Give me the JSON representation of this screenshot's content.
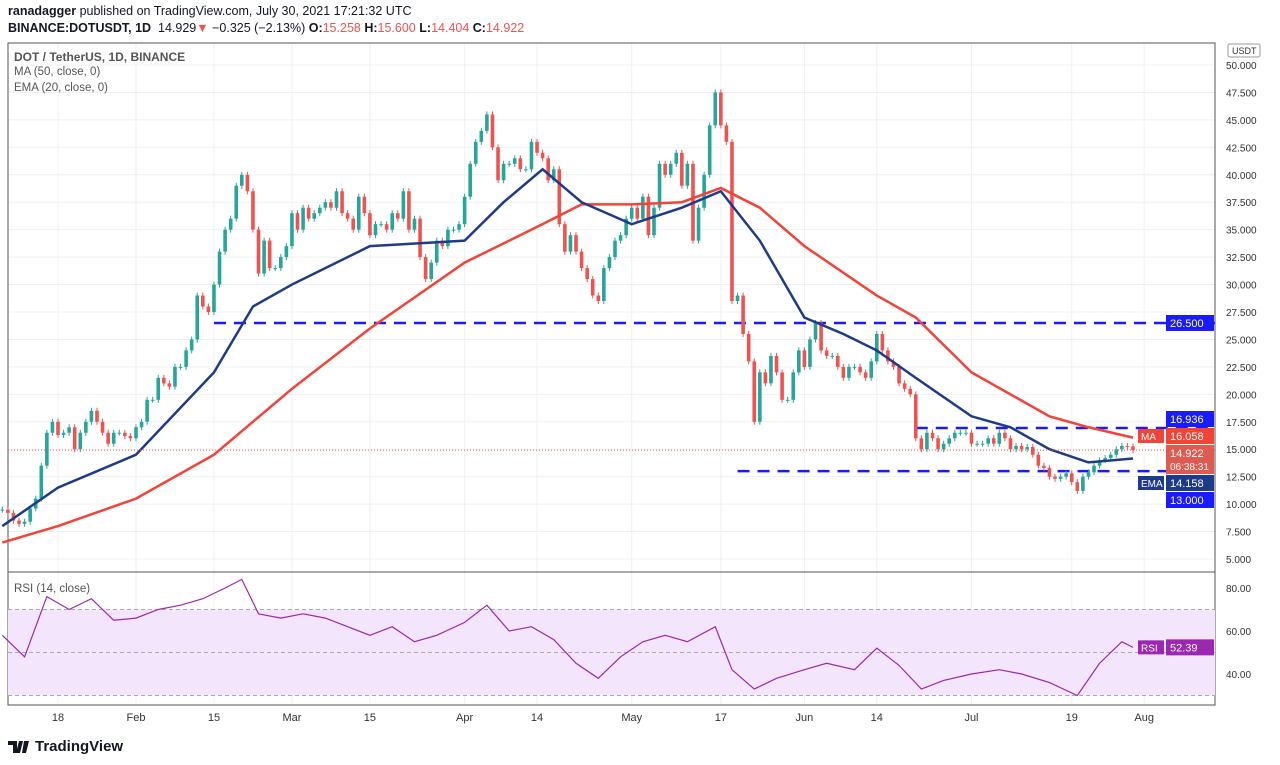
{
  "header": {
    "publisher": "ranadagger",
    "published_text": "published on TradingView.com, July 30, 2021 17:21:32 UTC",
    "symbol": "BINANCE:DOTUSDT, 1D",
    "last": "14.929",
    "change": "−0.325 (−2.13%)",
    "o_label": "O:",
    "o": "15.258",
    "h_label": "H:",
    "h": "15.600",
    "l_label": "L:",
    "l": "14.404",
    "c_label": "C:",
    "c": "14.922",
    "direction_icon": "triangle-down-icon"
  },
  "legend": {
    "title": "DOT / TetherUS, 1D, BINANCE",
    "ma": "MA (50, close, 0)",
    "ema": "EMA (20, close, 0)",
    "rsi": "RSI (14, close)"
  },
  "brand": "TradingView",
  "colors": {
    "up": "#26a69a",
    "down": "#ef5350",
    "ma": "#f44336",
    "ema": "#1e3a8a",
    "levels": "#1a1aff",
    "rsi": "#9c27b0",
    "rsi_band": "#f3e5fc"
  },
  "chart_data": {
    "type": "candlestick",
    "start_date": "2021-01-08",
    "currency": "USDT",
    "ylim": [
      5,
      50
    ],
    "price_ticks": [
      "5.000",
      "7.500",
      "10.000",
      "12.500",
      "15.000",
      "17.500",
      "20.000",
      "22.500",
      "25.000",
      "27.500",
      "30.000",
      "32.500",
      "35.000",
      "37.500",
      "40.000",
      "42.500",
      "45.000",
      "47.500",
      "50.000"
    ],
    "x_ticks": [
      {
        "date": "2021-01-18",
        "label": "18"
      },
      {
        "date": "2021-02-01",
        "label": "Feb"
      },
      {
        "date": "2021-02-15",
        "label": "15"
      },
      {
        "date": "2021-03-01",
        "label": "Mar"
      },
      {
        "date": "2021-03-15",
        "label": "15"
      },
      {
        "date": "2021-04-01",
        "label": "Apr"
      },
      {
        "date": "2021-04-14",
        "label": "14"
      },
      {
        "date": "2021-05-01",
        "label": "May"
      },
      {
        "date": "2021-05-17",
        "label": "17"
      },
      {
        "date": "2021-06-01",
        "label": "Jun"
      },
      {
        "date": "2021-06-14",
        "label": "14"
      },
      {
        "date": "2021-07-01",
        "label": "Jul"
      },
      {
        "date": "2021-07-19",
        "label": "19"
      },
      {
        "date": "2021-08-01",
        "label": "Aug"
      }
    ],
    "closes": [
      9.5,
      9.2,
      8.5,
      8.2,
      8.4,
      9.6,
      10.5,
      13.5,
      16.5,
      17.5,
      16.3,
      16.5,
      17,
      15,
      16.5,
      17.5,
      18.5,
      17.5,
      16.5,
      15.5,
      16.5,
      16.5,
      16.2,
      16,
      17,
      17.5,
      19.5,
      19.5,
      21.5,
      21,
      20.7,
      22.5,
      22.5,
      24,
      25,
      29,
      28,
      27.5,
      30,
      33,
      35,
      36,
      39,
      40,
      38.5,
      35,
      31,
      34,
      31.5,
      31.5,
      32.5,
      33.5,
      36.5,
      35,
      37,
      36,
      36.5,
      37,
      37.5,
      37,
      38.5,
      36.5,
      36,
      35,
      38,
      36.5,
      34.5,
      35.5,
      35.5,
      35,
      36.5,
      36,
      38.5,
      35,
      36,
      32.5,
      30.5,
      32,
      34,
      33.5,
      35,
      35,
      35.5,
      38,
      41,
      43,
      44,
      45.5,
      42.5,
      39.5,
      41,
      41,
      41.5,
      40.5,
      40.5,
      43,
      42,
      41.5,
      39.5,
      40.5,
      35.5,
      33,
      34.5,
      33,
      31.5,
      30.5,
      29,
      28.5,
      31.5,
      32.5,
      34,
      34.5,
      36,
      37,
      36,
      38,
      34.5,
      37,
      41,
      40,
      41,
      42,
      39,
      41,
      34,
      37,
      40,
      44.5,
      47.5,
      44.5,
      43,
      28.5,
      29,
      25.5,
      23,
      17.5,
      22,
      21,
      23.5,
      22,
      19.5,
      19.5,
      22,
      24,
      22.5,
      25,
      26.5,
      24,
      23.5,
      23.5,
      22.5,
      21.5,
      22.5,
      22.5,
      22,
      21.5,
      23,
      25.5,
      24,
      23,
      22.5,
      21,
      20.5,
      20,
      16,
      15,
      16.5,
      16,
      15,
      15.5,
      16,
      16.5,
      16.5,
      16.5,
      15.5,
      15.5,
      15.5,
      16,
      15.5,
      16.5,
      16,
      15,
      15.3,
      15,
      15.2,
      14.5,
      13.5,
      13.3,
      12.5,
      12.3,
      12.5,
      12.8,
      12,
      11.2,
      12.5,
      12.9,
      13.5,
      14,
      14.2,
      14.5,
      15,
      15.3,
      15.258,
      14.922
    ],
    "ma50": [
      [
        "2021-01-08",
        6.5
      ],
      [
        "2021-01-18",
        8
      ],
      [
        "2021-02-01",
        10.5
      ],
      [
        "2021-02-15",
        14.5
      ],
      [
        "2021-03-01",
        20.5
      ],
      [
        "2021-03-15",
        26
      ],
      [
        "2021-04-01",
        32
      ],
      [
        "2021-04-15",
        35.5
      ],
      [
        "2021-04-22",
        37.3
      ],
      [
        "2021-05-01",
        37.3
      ],
      [
        "2021-05-10",
        37.5
      ],
      [
        "2021-05-17",
        38.8
      ],
      [
        "2021-05-24",
        37
      ],
      [
        "2021-06-01",
        33.5
      ],
      [
        "2021-06-14",
        29
      ],
      [
        "2021-06-21",
        27
      ],
      [
        "2021-07-01",
        22
      ],
      [
        "2021-07-15",
        18
      ],
      [
        "2021-07-22",
        17
      ],
      [
        "2021-07-30",
        16.058
      ]
    ],
    "ema20": [
      [
        "2021-01-08",
        8
      ],
      [
        "2021-01-18",
        11.5
      ],
      [
        "2021-02-01",
        14.5
      ],
      [
        "2021-02-15",
        22
      ],
      [
        "2021-02-22",
        28
      ],
      [
        "2021-03-01",
        30
      ],
      [
        "2021-03-15",
        33.5
      ],
      [
        "2021-04-01",
        34
      ],
      [
        "2021-04-08",
        37.5
      ],
      [
        "2021-04-15",
        40.5
      ],
      [
        "2021-04-22",
        37.5
      ],
      [
        "2021-05-01",
        35.5
      ],
      [
        "2021-05-10",
        37
      ],
      [
        "2021-05-17",
        38.5
      ],
      [
        "2021-05-24",
        34
      ],
      [
        "2021-06-01",
        27
      ],
      [
        "2021-06-08",
        25.5
      ],
      [
        "2021-06-14",
        24
      ],
      [
        "2021-06-21",
        21.5
      ],
      [
        "2021-07-01",
        18
      ],
      [
        "2021-07-08",
        17
      ],
      [
        "2021-07-15",
        15
      ],
      [
        "2021-07-22",
        13.8
      ],
      [
        "2021-07-30",
        14.158
      ]
    ],
    "levels": [
      {
        "value": 26.5,
        "label": "26.500",
        "from": "2021-02-15"
      },
      {
        "value": 16.936,
        "label": "16.936",
        "from": "2021-06-21"
      },
      {
        "value": 13.0,
        "label": "13.000",
        "from": "2021-05-20"
      }
    ],
    "price_labels": {
      "ma": {
        "tag": "MA",
        "value": "16.058"
      },
      "last": {
        "value": "14.922",
        "countdown": "06:38:31"
      },
      "ema": {
        "tag": "EMA",
        "value": "14.158"
      }
    },
    "rsi": {
      "ylim": [
        25,
        88
      ],
      "band": [
        30,
        70
      ],
      "ticks": [
        "40.00",
        "60.00",
        "80.00"
      ],
      "last_tag": "RSI",
      "last": "52.39",
      "points": [
        [
          "2021-01-08",
          58
        ],
        [
          "2021-01-12",
          48
        ],
        [
          "2021-01-16",
          76
        ],
        [
          "2021-01-20",
          70
        ],
        [
          "2021-01-24",
          75
        ],
        [
          "2021-01-28",
          65
        ],
        [
          "2021-02-01",
          66
        ],
        [
          "2021-02-05",
          70
        ],
        [
          "2021-02-09",
          72
        ],
        [
          "2021-02-13",
          75
        ],
        [
          "2021-02-17",
          80
        ],
        [
          "2021-02-20",
          84
        ],
        [
          "2021-02-23",
          68
        ],
        [
          "2021-02-27",
          66
        ],
        [
          "2021-03-03",
          68
        ],
        [
          "2021-03-07",
          66
        ],
        [
          "2021-03-11",
          62
        ],
        [
          "2021-03-15",
          58
        ],
        [
          "2021-03-19",
          62
        ],
        [
          "2021-03-23",
          55
        ],
        [
          "2021-03-27",
          58
        ],
        [
          "2021-04-01",
          64
        ],
        [
          "2021-04-05",
          72
        ],
        [
          "2021-04-09",
          60
        ],
        [
          "2021-04-13",
          62
        ],
        [
          "2021-04-17",
          56
        ],
        [
          "2021-04-21",
          45
        ],
        [
          "2021-04-25",
          38
        ],
        [
          "2021-04-29",
          48
        ],
        [
          "2021-05-03",
          55
        ],
        [
          "2021-05-07",
          58
        ],
        [
          "2021-05-11",
          55
        ],
        [
          "2021-05-16",
          62
        ],
        [
          "2021-05-19",
          42
        ],
        [
          "2021-05-23",
          33
        ],
        [
          "2021-05-27",
          38
        ],
        [
          "2021-06-01",
          42
        ],
        [
          "2021-06-05",
          45
        ],
        [
          "2021-06-10",
          42
        ],
        [
          "2021-06-14",
          52
        ],
        [
          "2021-06-18",
          44
        ],
        [
          "2021-06-22",
          33
        ],
        [
          "2021-06-26",
          37
        ],
        [
          "2021-07-01",
          40
        ],
        [
          "2021-07-06",
          42
        ],
        [
          "2021-07-10",
          40
        ],
        [
          "2021-07-15",
          36
        ],
        [
          "2021-07-20",
          30
        ],
        [
          "2021-07-24",
          45
        ],
        [
          "2021-07-28",
          55
        ],
        [
          "2021-07-30",
          52.39
        ]
      ]
    }
  }
}
